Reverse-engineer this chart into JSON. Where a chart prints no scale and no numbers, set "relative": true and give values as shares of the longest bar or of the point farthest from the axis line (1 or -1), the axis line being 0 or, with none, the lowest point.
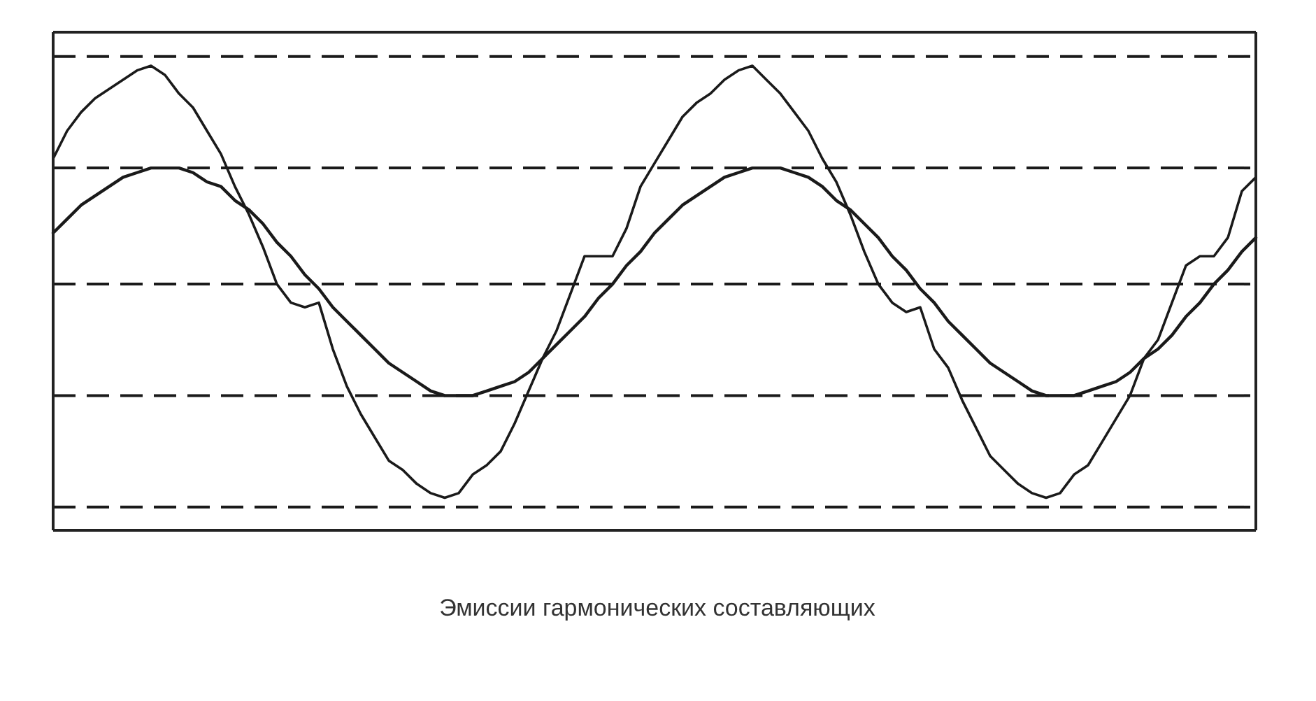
{
  "chart_data": {
    "type": "line",
    "relative": true,
    "categories": [
      null,
      null,
      null,
      null,
      null,
      null,
      null,
      null,
      null,
      null,
      null,
      null,
      null,
      null,
      null,
      null,
      null,
      null,
      null,
      null,
      null,
      null,
      null,
      null,
      null,
      null,
      null,
      null,
      null,
      null,
      null,
      null,
      null,
      null,
      null,
      null,
      null,
      null,
      null,
      null,
      null,
      null,
      null,
      null,
      null,
      null,
      null,
      null,
      null,
      null,
      null,
      null,
      null,
      null,
      null,
      null,
      null,
      null,
      null,
      null,
      null,
      null,
      null,
      null,
      null,
      null,
      null,
      null,
      null,
      null,
      null,
      null,
      null,
      null,
      null,
      null,
      null,
      null,
      null,
      null,
      null,
      null,
      null,
      null,
      null,
      null,
      null
    ],
    "series": [
      {
        "color": "#1a1a1a",
        "values": [
          0.8,
          0.86,
          0.9,
          0.93,
          0.95,
          0.97,
          0.99,
          1.0,
          0.98,
          0.94,
          0.91,
          0.86,
          0.81,
          0.74,
          0.68,
          0.61,
          0.53,
          0.49,
          0.48,
          0.49,
          0.39,
          0.31,
          0.25,
          0.2,
          0.15,
          0.13,
          0.1,
          0.08,
          0.07,
          0.08,
          0.12,
          0.14,
          0.17,
          0.23,
          0.3,
          0.37,
          0.43,
          0.51,
          0.59,
          0.59,
          0.59,
          0.65,
          0.74,
          0.79,
          0.84,
          0.89,
          0.92,
          0.94,
          0.97,
          0.99,
          1.0,
          0.97,
          0.94,
          0.9,
          0.86,
          0.8,
          0.75,
          0.68,
          0.6,
          0.53,
          0.49,
          0.47,
          0.48,
          0.39,
          0.35,
          0.28,
          0.22,
          0.16,
          0.13,
          0.1,
          0.08,
          0.07,
          0.08,
          0.12,
          0.14,
          0.19,
          0.24,
          0.29,
          0.37,
          0.41,
          0.49,
          0.57,
          0.59,
          0.59,
          0.63,
          0.73,
          0.76
        ]
      },
      {
        "color": "#1a1a1a",
        "values": [
          0.64,
          0.67,
          0.7,
          0.72,
          0.74,
          0.76,
          0.77,
          0.78,
          0.78,
          0.78,
          0.77,
          0.75,
          0.74,
          0.71,
          0.69,
          0.66,
          0.62,
          0.59,
          0.55,
          0.52,
          0.48,
          0.45,
          0.42,
          0.39,
          0.36,
          0.34,
          0.32,
          0.3,
          0.29,
          0.29,
          0.29,
          0.3,
          0.31,
          0.32,
          0.34,
          0.37,
          0.4,
          0.43,
          0.46,
          0.5,
          0.53,
          0.57,
          0.6,
          0.64,
          0.67,
          0.7,
          0.72,
          0.74,
          0.76,
          0.77,
          0.78,
          0.78,
          0.78,
          0.77,
          0.76,
          0.74,
          0.71,
          0.69,
          0.66,
          0.63,
          0.59,
          0.56,
          0.52,
          0.49,
          0.45,
          0.42,
          0.39,
          0.36,
          0.34,
          0.32,
          0.3,
          0.29,
          0.29,
          0.29,
          0.3,
          0.31,
          0.32,
          0.34,
          0.37,
          0.39,
          0.42,
          0.46,
          0.49,
          0.53,
          0.56,
          0.6,
          0.63
        ]
      }
    ],
    "ref_lines": [
      {
        "axis": "y",
        "value": 1.02,
        "color": "#1a1a1a",
        "line_style": "dashed"
      },
      {
        "axis": "y",
        "value": 0.78,
        "color": "#1a1a1a",
        "line_style": "dashed"
      },
      {
        "axis": "y",
        "value": 0.53,
        "color": "#1a1a1a",
        "line_style": "dashed"
      },
      {
        "axis": "y",
        "value": 0.29,
        "color": "#1a1a1a",
        "line_style": "dashed"
      },
      {
        "axis": "y",
        "value": 0.05,
        "color": "#1a1a1a",
        "line_style": "dashed"
      }
    ],
    "annotations": [
      "Эмиссии гармонических составляющих"
    ]
  }
}
